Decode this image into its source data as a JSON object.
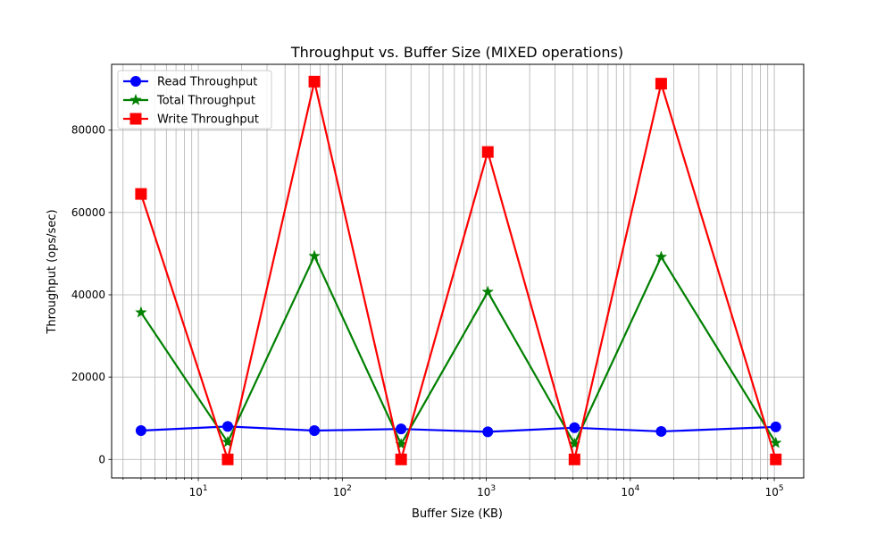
{
  "chart_data": {
    "type": "line",
    "title": "Throughput vs. Buffer Size (MIXED operations)",
    "xlabel": "Buffer Size (KB)",
    "ylabel": "Throughput (ops/sec)",
    "xscale": "log",
    "xlim": [
      2.5,
      160000
    ],
    "ylim": [
      -4500,
      96000
    ],
    "grid": "both, major and minor on x",
    "legend_position": "top-left",
    "x_ticks": [
      {
        "value": 10,
        "base": "10",
        "exp": "1"
      },
      {
        "value": 100,
        "base": "10",
        "exp": "2"
      },
      {
        "value": 1000,
        "base": "10",
        "exp": "3"
      },
      {
        "value": 10000,
        "base": "10",
        "exp": "4"
      },
      {
        "value": 100000,
        "base": "10",
        "exp": "5"
      }
    ],
    "y_ticks": [
      {
        "value": 0,
        "label": "0"
      },
      {
        "value": 20000,
        "label": "20000"
      },
      {
        "value": 40000,
        "label": "40000"
      },
      {
        "value": 60000,
        "label": "60000"
      },
      {
        "value": 80000,
        "label": "80000"
      }
    ],
    "x": [
      4,
      16,
      64,
      256,
      1024,
      4096,
      16384,
      102400
    ],
    "series": [
      {
        "name": "Read Throughput",
        "color": "#0000ff",
        "marker": "circle",
        "values": [
          7000,
          8000,
          7000,
          7400,
          6700,
          7700,
          6800,
          7900
        ]
      },
      {
        "name": "Total Throughput",
        "color": "#008000",
        "marker": "star",
        "values": [
          35700,
          4200,
          49400,
          3700,
          40700,
          3800,
          49200,
          4000
        ]
      },
      {
        "name": "Write Throughput",
        "color": "#ff0000",
        "marker": "square",
        "values": [
          64500,
          0,
          91800,
          0,
          74700,
          0,
          91300,
          0
        ]
      }
    ],
    "legend_order": [
      0,
      1,
      2
    ]
  }
}
